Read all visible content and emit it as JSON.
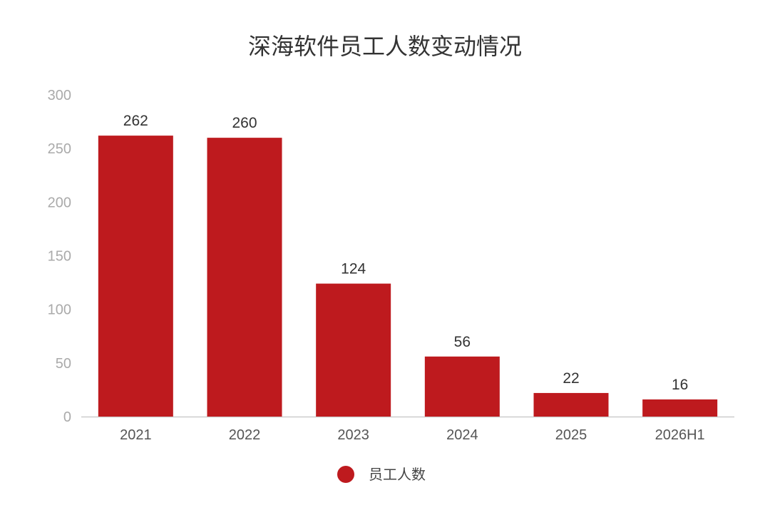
{
  "chart_data": {
    "type": "bar",
    "title": "深海软件员工人数变动情况",
    "categories": [
      "2021",
      "2022",
      "2023",
      "2024",
      "2025",
      "2026H1"
    ],
    "series": [
      {
        "name": "员工人数",
        "values": [
          262,
          260,
          124,
          56,
          22,
          16
        ],
        "color": "#be1a1e"
      }
    ],
    "ylim": [
      0,
      300
    ],
    "yticks": [
      0,
      50,
      100,
      150,
      200,
      250,
      300
    ],
    "xlabel": "",
    "ylabel": "",
    "grid": false,
    "legend": "bottom-center",
    "data_labels": true
  }
}
